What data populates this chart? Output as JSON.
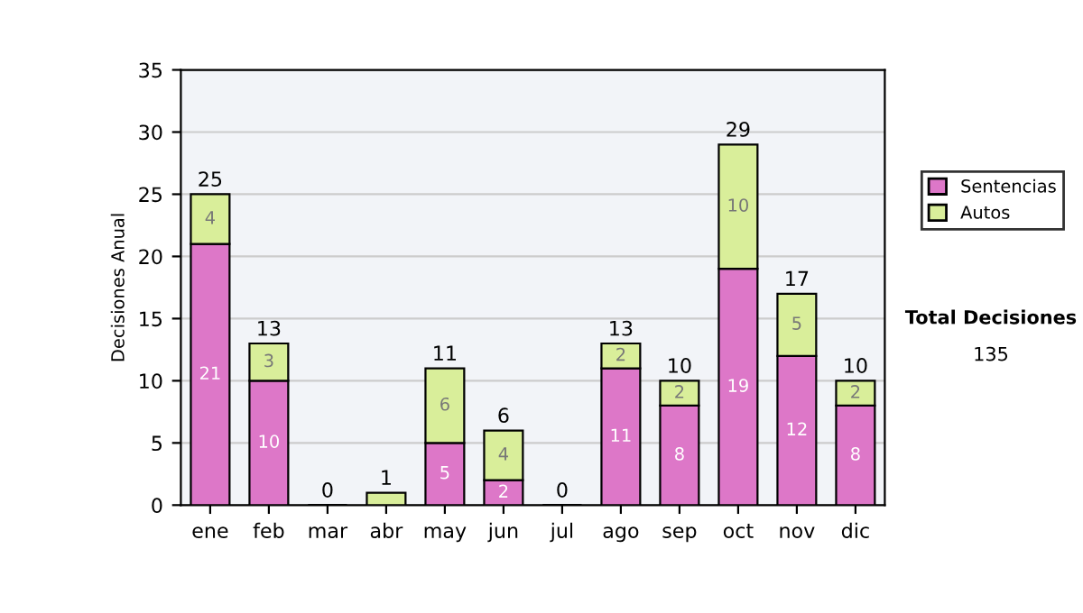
{
  "chart_data": {
    "type": "bar",
    "stacked": true,
    "ylabel": "Decisiones Anual",
    "categories": [
      "ene",
      "feb",
      "mar",
      "abr",
      "may",
      "jun",
      "jul",
      "ago",
      "sep",
      "oct",
      "nov",
      "dic"
    ],
    "series": [
      {
        "name": "Sentencias",
        "color": "#dd77c8",
        "values": [
          21,
          10,
          0,
          0,
          5,
          2,
          0,
          11,
          8,
          19,
          12,
          8
        ],
        "value_labels": [
          "21",
          "10",
          null,
          null,
          "5",
          "2",
          null,
          "11",
          "8",
          "19",
          "12",
          "8"
        ]
      },
      {
        "name": "Autos",
        "color": "#d9ee9a",
        "values": [
          4,
          3,
          0,
          1,
          6,
          4,
          0,
          2,
          2,
          10,
          5,
          2
        ],
        "value_labels": [
          "4",
          "3",
          null,
          null,
          "6",
          "4",
          null,
          "2",
          "2",
          "10",
          "5",
          "2"
        ]
      }
    ],
    "totals": [
      "25",
      "13",
      "0",
      "1",
      "11",
      "6",
      "0",
      "13",
      "10",
      "29",
      "17",
      "10"
    ],
    "ylim": [
      0,
      35
    ],
    "yticks": [
      0,
      5,
      10,
      15,
      20,
      25,
      30,
      35
    ],
    "grid": "y",
    "legend": "right",
    "annotations": [
      "Total Decisiones",
      "135"
    ]
  }
}
